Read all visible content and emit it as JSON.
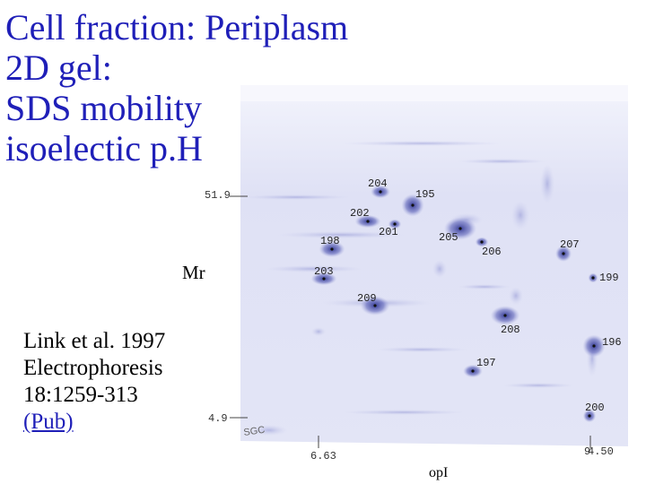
{
  "title_lines": [
    "Cell fraction: Periplasm",
    "2D gel:",
    "SDS mobility",
    "isoelectic p.H"
  ],
  "mr_label": "Mr",
  "citation": {
    "line1": "Link et al. 1997",
    "line2": "Electrophoresis",
    "line3": "18:1259-313",
    "link": "(Pub)"
  },
  "axis": {
    "mr_top": "51.9",
    "mr_bottom": "4.9",
    "pi_left": "6.63",
    "pi_right": "4.50",
    "pi_right_overlap": "9",
    "pi_label": "opI"
  },
  "gel_text": "SGC",
  "spots": [
    {
      "id": "204",
      "label": "204"
    },
    {
      "id": "195",
      "label": "195"
    },
    {
      "id": "202",
      "label": "202"
    },
    {
      "id": "201",
      "label": "201"
    },
    {
      "id": "198",
      "label": "198"
    },
    {
      "id": "205",
      "label": "205"
    },
    {
      "id": "206",
      "label": "206"
    },
    {
      "id": "207",
      "label": "207"
    },
    {
      "id": "203",
      "label": "203"
    },
    {
      "id": "199",
      "label": "199"
    },
    {
      "id": "209",
      "label": "209"
    },
    {
      "id": "208",
      "label": "208"
    },
    {
      "id": "196",
      "label": "196"
    },
    {
      "id": "197",
      "label": "197"
    },
    {
      "id": "200",
      "label": "200"
    }
  ],
  "colors": {
    "title": "#1f1fb8",
    "gel": "#d4d7f2",
    "spot": "#2a2f86"
  }
}
